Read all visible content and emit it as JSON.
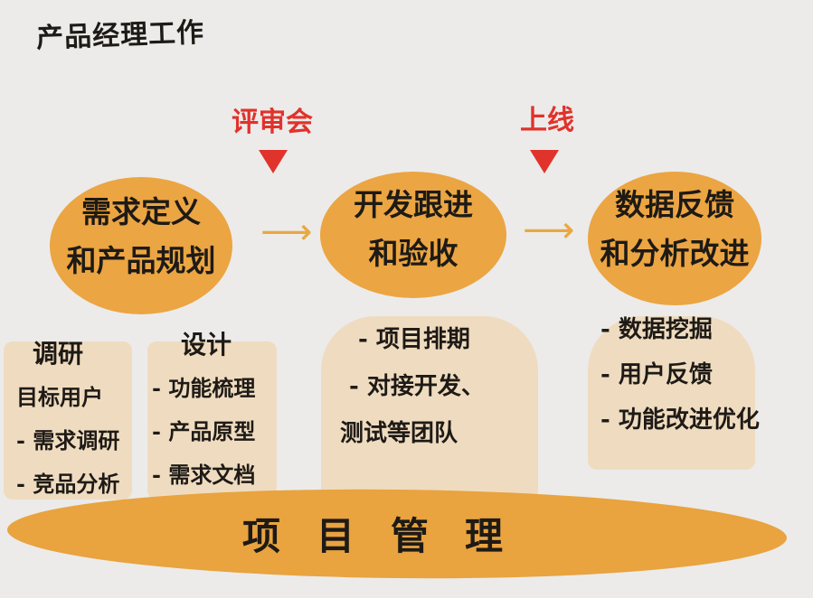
{
  "title": "产品经理工作",
  "colors": {
    "blob": "#eba542",
    "panel": "#efdcc0",
    "accent": "#e0332b",
    "arrow": "#e9a93f",
    "ink": "#1e1a16",
    "board": "#ecebea"
  },
  "milestones": [
    {
      "label": "评审会"
    },
    {
      "label": "上线"
    }
  ],
  "stages": [
    {
      "line1": "需求定义",
      "line2": "和产品规划"
    },
    {
      "line1": "开发跟进",
      "line2": "和验收"
    },
    {
      "line1": "数据反馈",
      "line2": "和分析改进"
    }
  ],
  "arrow_icon": "right-arrow-icon",
  "details": {
    "research": {
      "heading": "调研",
      "items": [
        "目标用户",
        "- 需求调研",
        "- 竞品分析"
      ]
    },
    "design": {
      "heading": "设计",
      "items": [
        "- 功能梳理",
        "- 产品原型",
        "- 需求文档"
      ]
    },
    "dev": {
      "items": [
        "- 项目排期",
        "- 对接开发、",
        "测试等团队"
      ]
    },
    "data": {
      "items": [
        "- 数据挖掘",
        "- 用户反馈",
        "- 功能改进优化"
      ]
    }
  },
  "project_management": "项目管理"
}
